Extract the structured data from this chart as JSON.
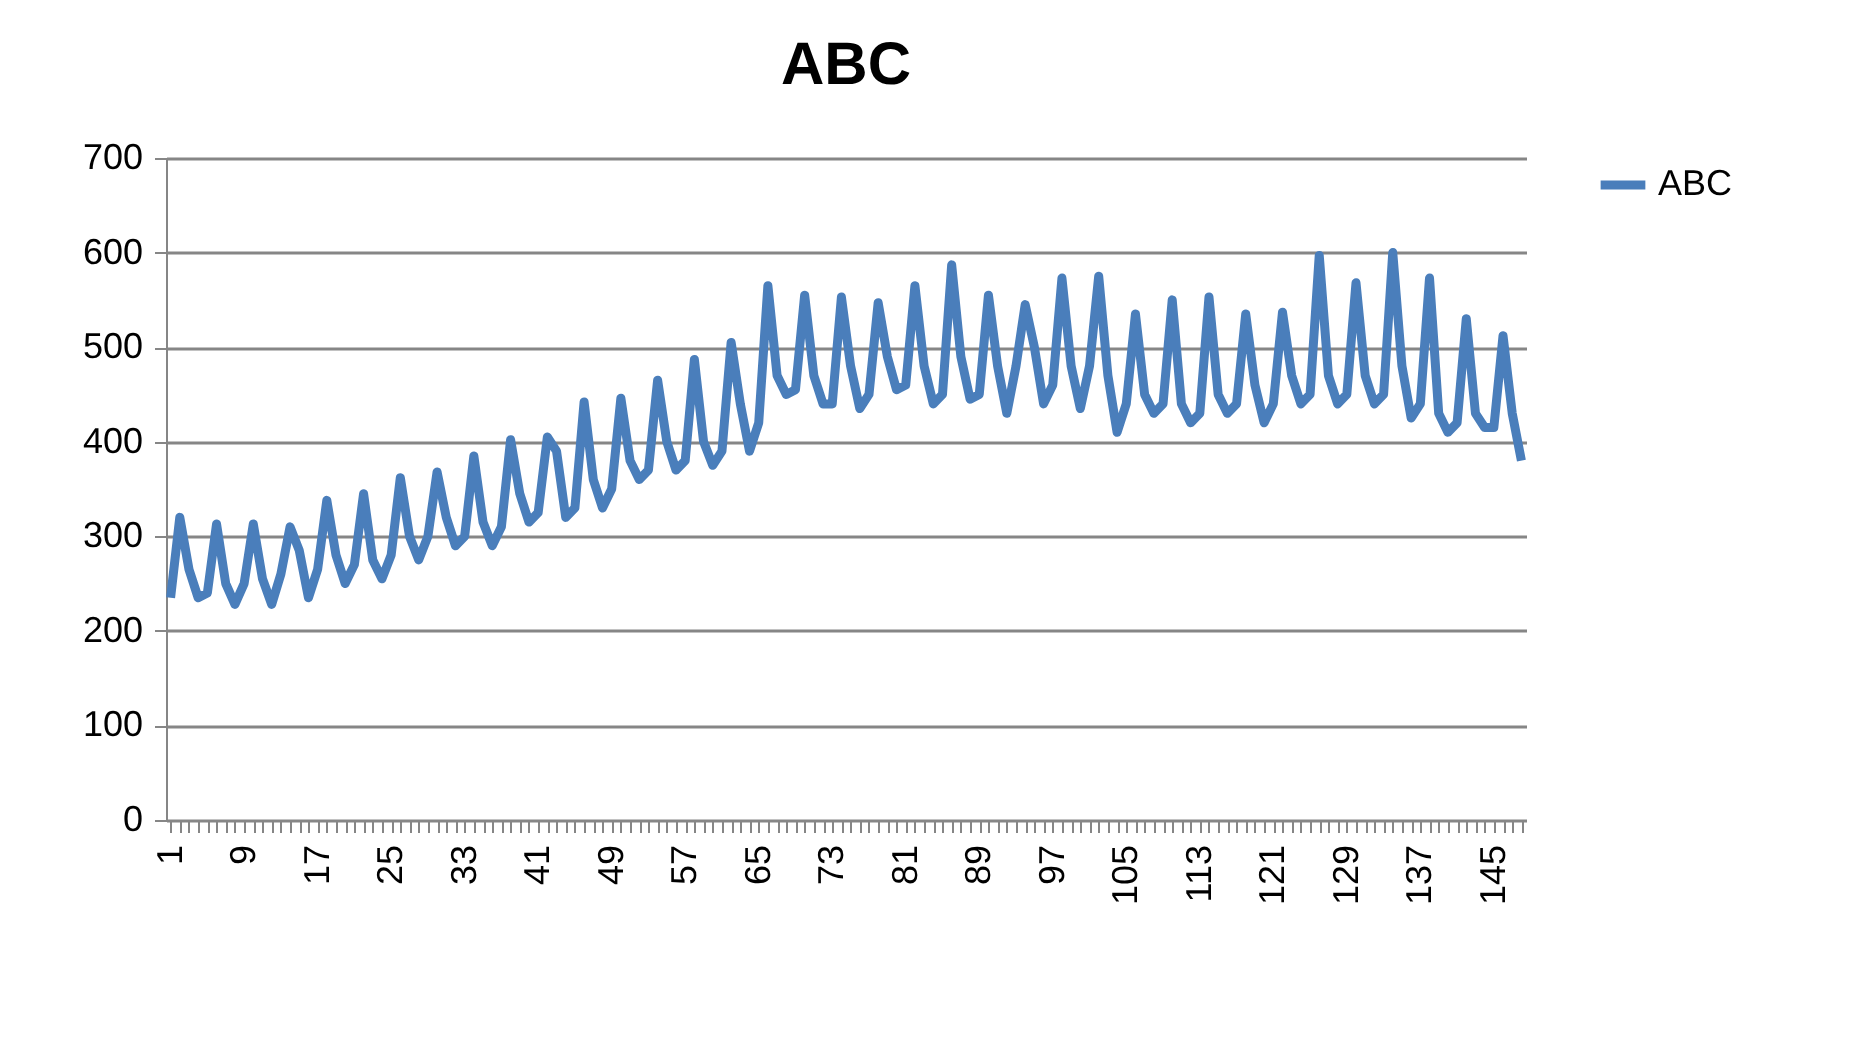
{
  "chart_data": {
    "type": "line",
    "title": "ABC",
    "categories": [
      "1",
      null,
      null,
      null,
      null,
      null,
      null,
      null,
      "9",
      null,
      null,
      null,
      null,
      null,
      null,
      null,
      "17",
      null,
      null,
      null,
      null,
      null,
      null,
      null,
      "25",
      null,
      null,
      null,
      null,
      null,
      null,
      null,
      "33",
      null,
      null,
      null,
      null,
      null,
      null,
      null,
      "41",
      null,
      null,
      null,
      null,
      null,
      null,
      null,
      "49",
      null,
      null,
      null,
      null,
      null,
      null,
      null,
      "57",
      null,
      null,
      null,
      null,
      null,
      null,
      null,
      "65",
      null,
      null,
      null,
      null,
      null,
      null,
      null,
      "73",
      null,
      null,
      null,
      null,
      null,
      null,
      null,
      "81",
      null,
      null,
      null,
      null,
      null,
      null,
      null,
      "89",
      null,
      null,
      null,
      null,
      null,
      null,
      null,
      "97",
      null,
      null,
      null,
      null,
      null,
      null,
      null,
      "105",
      null,
      null,
      null,
      null,
      null,
      null,
      null,
      "113",
      null,
      null,
      null,
      null,
      null,
      null,
      null,
      "121",
      null,
      null,
      null,
      null,
      null,
      null,
      null,
      "129",
      null,
      null,
      null,
      null,
      null,
      null,
      null,
      "137",
      null,
      null,
      null,
      null,
      null,
      null,
      null,
      "145",
      null,
      null,
      null
    ],
    "series": [
      {
        "name": "ABC",
        "color": "#4a7ebb",
        "values": [
          235,
          320,
          265,
          235,
          240,
          313,
          250,
          228,
          250,
          313,
          255,
          228,
          260,
          310,
          285,
          235,
          265,
          338,
          280,
          250,
          270,
          345,
          275,
          255,
          280,
          362,
          300,
          275,
          300,
          368,
          320,
          290,
          300,
          385,
          315,
          290,
          310,
          402,
          345,
          315,
          325,
          405,
          390,
          320,
          330,
          442,
          360,
          330,
          350,
          446,
          380,
          360,
          370,
          465,
          400,
          370,
          380,
          487,
          400,
          375,
          390,
          505,
          440,
          390,
          420,
          565,
          470,
          450,
          455,
          555,
          470,
          440,
          440,
          553,
          480,
          435,
          450,
          547,
          490,
          455,
          460,
          565,
          480,
          440,
          450,
          587,
          490,
          445,
          450,
          555,
          480,
          430,
          480,
          545,
          500,
          440,
          460,
          573,
          480,
          435,
          480,
          575,
          470,
          410,
          440,
          535,
          450,
          430,
          440,
          550,
          440,
          420,
          430,
          553,
          450,
          430,
          440,
          535,
          460,
          420,
          440,
          537,
          470,
          440,
          450,
          597,
          470,
          440,
          450,
          568,
          470,
          440,
          450,
          600,
          480,
          425,
          440,
          573,
          430,
          410,
          420,
          530,
          430,
          415,
          415,
          512,
          430,
          380
        ]
      }
    ],
    "ylim": [
      0,
      700
    ],
    "yticks": [
      0,
      100,
      200,
      300,
      400,
      500,
      600,
      700
    ],
    "grid": "y",
    "legend": "right",
    "line_style": "solid",
    "marker": "none"
  }
}
